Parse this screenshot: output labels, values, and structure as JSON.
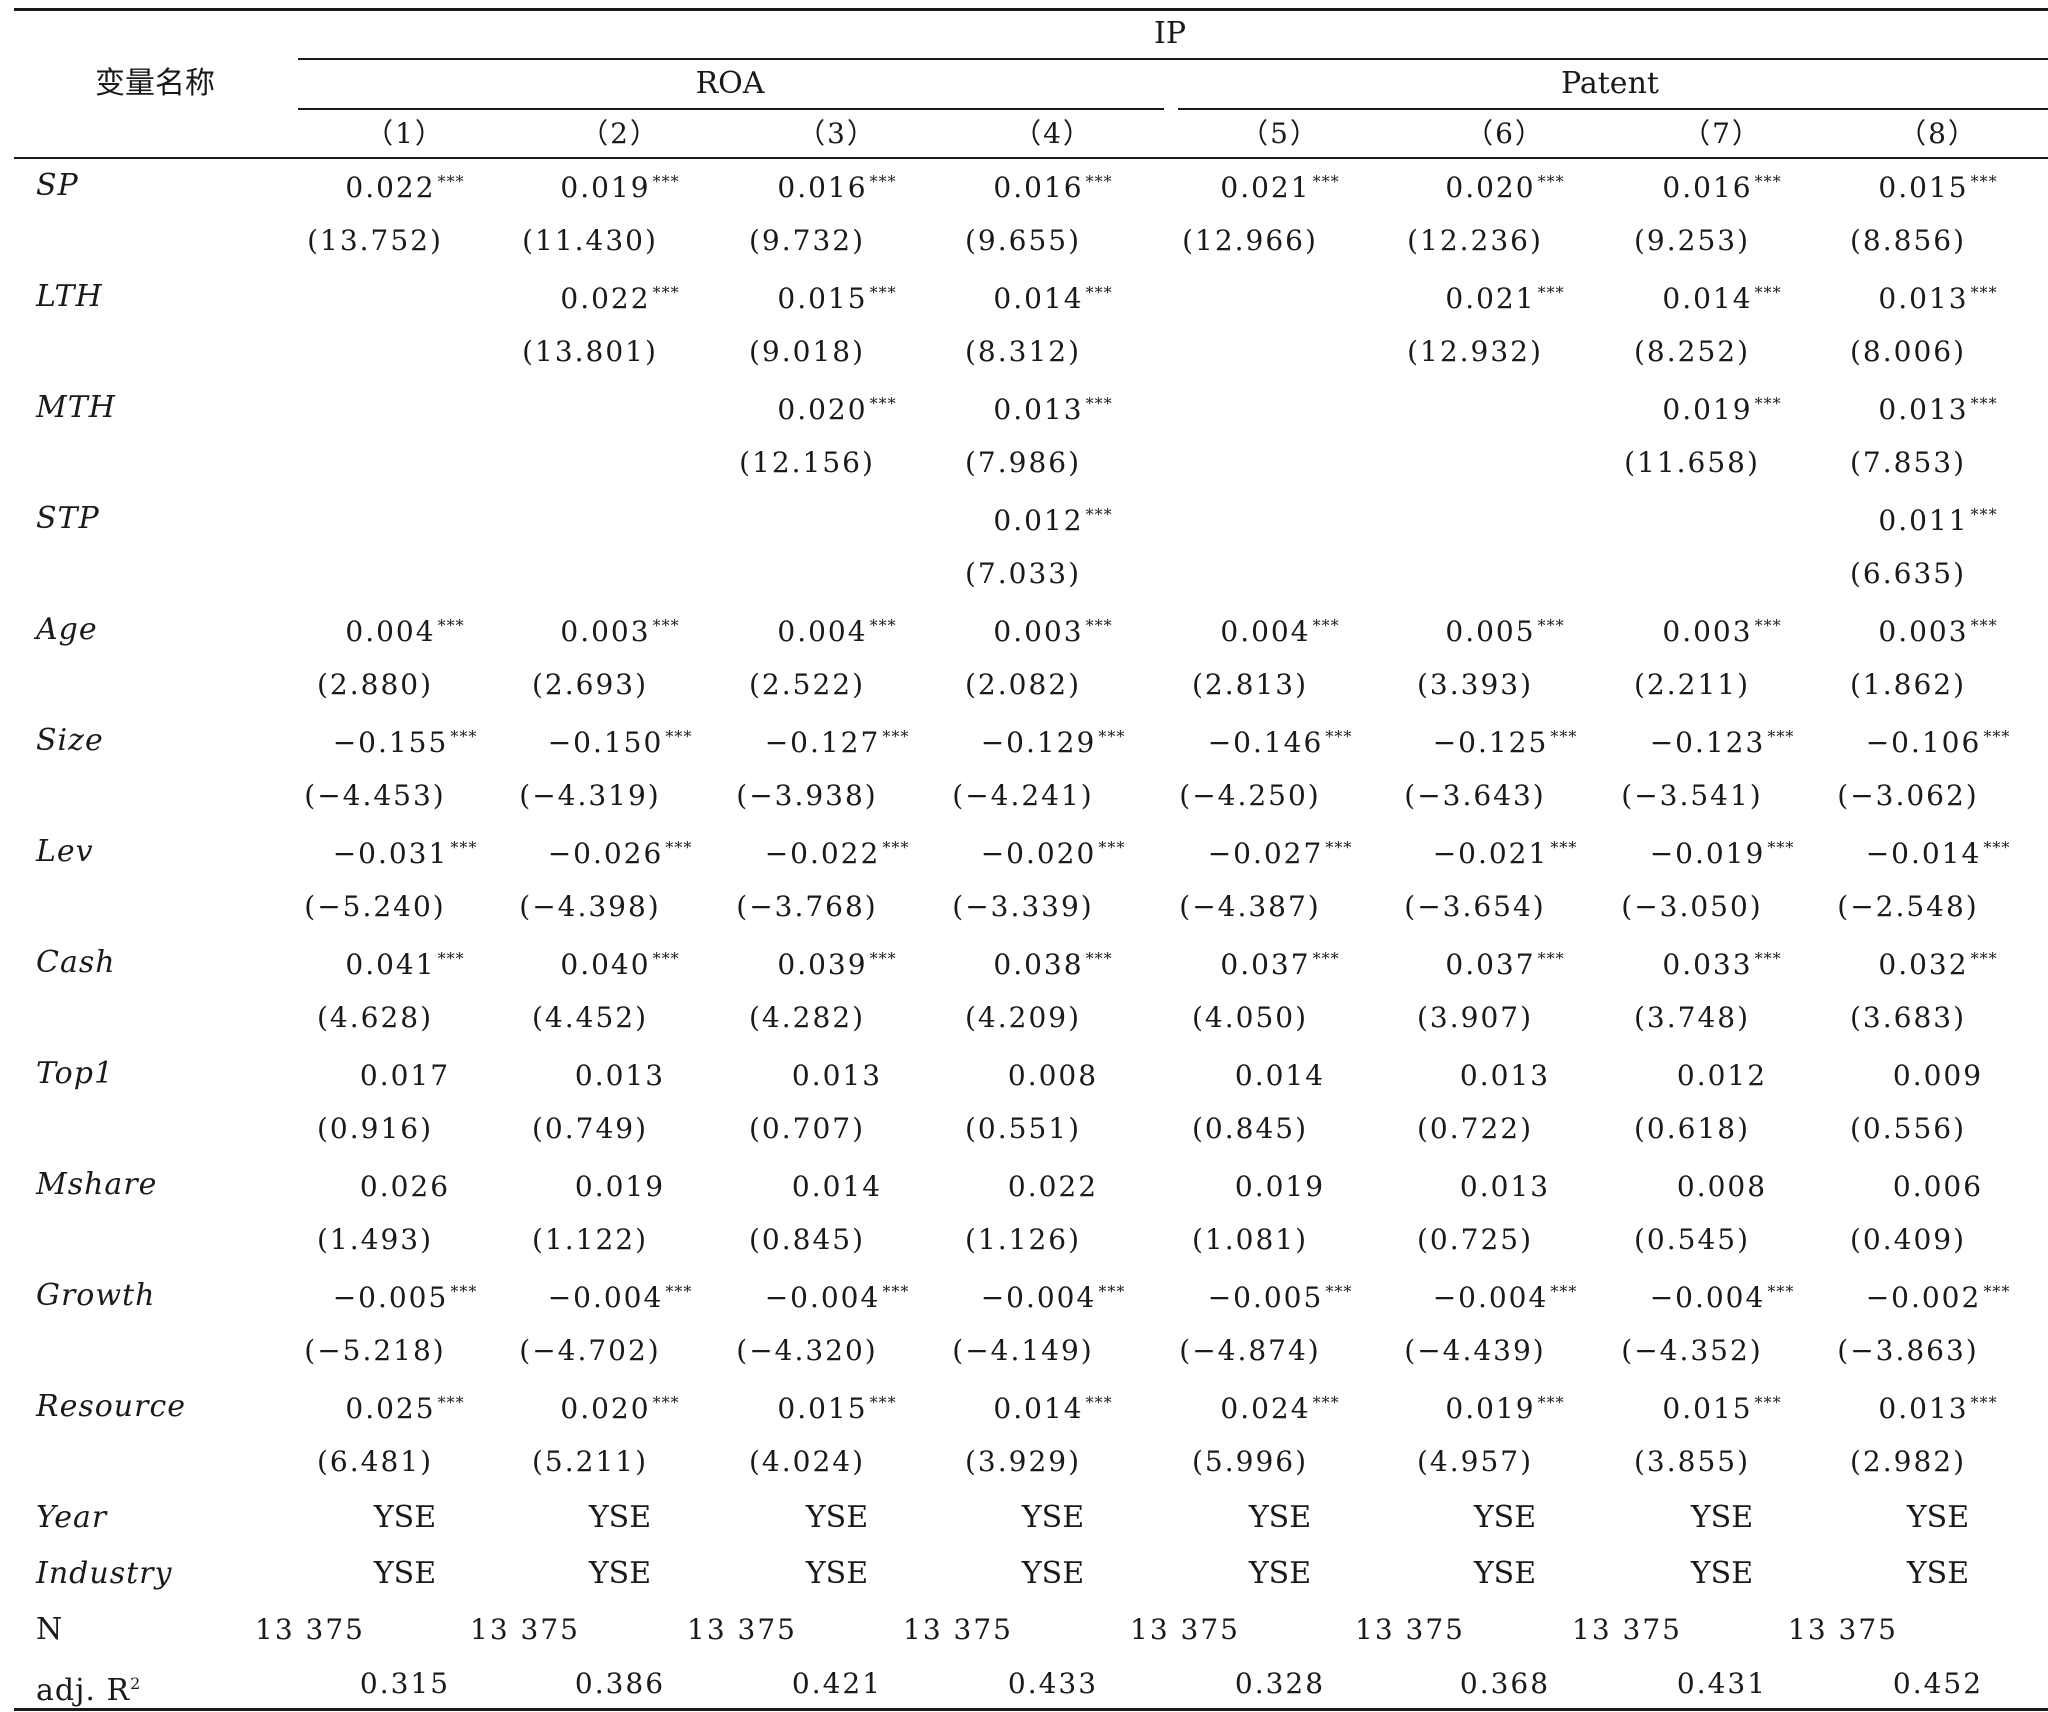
{
  "header": {
    "var_name": "变量名称",
    "ip": "IP",
    "roa": "ROA",
    "patent": "Patent",
    "cols": [
      "（1）",
      "（2）",
      "（3）",
      "（4）",
      "（5）",
      "（6）",
      "（7）",
      "（8）"
    ]
  },
  "rows": [
    {
      "name": "SP",
      "italic": true,
      "coef": [
        "0.022",
        "0.019",
        "0.016",
        "0.016",
        "0.021",
        "0.020",
        "0.016",
        "0.015"
      ],
      "stars": [
        "***",
        "***",
        "***",
        "***",
        "***",
        "***",
        "***",
        "***"
      ],
      "t": [
        "(13.752)",
        "(11.430)",
        "(9.732)",
        "(9.655)",
        "(12.966)",
        "(12.236)",
        "(9.253)",
        "(8.856)"
      ]
    },
    {
      "name": "LTH",
      "italic": true,
      "coef": [
        "",
        "0.022",
        "0.015",
        "0.014",
        "",
        "0.021",
        "0.014",
        "0.013"
      ],
      "stars": [
        "",
        "***",
        "***",
        "***",
        "",
        "***",
        "***",
        "***"
      ],
      "t": [
        "",
        "(13.801)",
        "(9.018)",
        "(8.312)",
        "",
        "(12.932)",
        "(8.252)",
        "(8.006)"
      ]
    },
    {
      "name": "MTH",
      "italic": true,
      "coef": [
        "",
        "",
        "0.020",
        "0.013",
        "",
        "",
        "0.019",
        "0.013"
      ],
      "stars": [
        "",
        "",
        "***",
        "***",
        "",
        "",
        "***",
        "***"
      ],
      "t": [
        "",
        "",
        "(12.156)",
        "(7.986)",
        "",
        "",
        "(11.658)",
        "(7.853)"
      ]
    },
    {
      "name": "STP",
      "italic": true,
      "coef": [
        "",
        "",
        "",
        "0.012",
        "",
        "",
        "",
        "0.011"
      ],
      "stars": [
        "",
        "",
        "",
        "***",
        "",
        "",
        "",
        "***"
      ],
      "t": [
        "",
        "",
        "",
        "(7.033)",
        "",
        "",
        "",
        "(6.635)"
      ]
    },
    {
      "name": "Age",
      "italic": true,
      "coef": [
        "0.004",
        "0.003",
        "0.004",
        "0.003",
        "0.004",
        "0.005",
        "0.003",
        "0.003"
      ],
      "stars": [
        "***",
        "***",
        "***",
        "***",
        "***",
        "***",
        "***",
        "***"
      ],
      "t": [
        "(2.880)",
        "(2.693)",
        "(2.522)",
        "(2.082)",
        "(2.813)",
        "(3.393)",
        "(2.211)",
        "(1.862)"
      ]
    },
    {
      "name": "Size",
      "italic": true,
      "coef": [
        "−0.155",
        "−0.150",
        "−0.127",
        "−0.129",
        "−0.146",
        "−0.125",
        "−0.123",
        "−0.106"
      ],
      "stars": [
        "***",
        "***",
        "***",
        "***",
        "***",
        "***",
        "***",
        "***"
      ],
      "t": [
        "(−4.453)",
        "(−4.319)",
        "(−3.938)",
        "(−4.241)",
        "(−4.250)",
        "(−3.643)",
        "(−3.541)",
        "(−3.062)"
      ]
    },
    {
      "name": "Lev",
      "italic": true,
      "coef": [
        "−0.031",
        "−0.026",
        "−0.022",
        "−0.020",
        "−0.027",
        "−0.021",
        "−0.019",
        "−0.014"
      ],
      "stars": [
        "***",
        "***",
        "***",
        "***",
        "***",
        "***",
        "***",
        "***"
      ],
      "t": [
        "(−5.240)",
        "(−4.398)",
        "(−3.768)",
        "(−3.339)",
        "(−4.387)",
        "(−3.654)",
        "(−3.050)",
        "(−2.548)"
      ]
    },
    {
      "name": "Cash",
      "italic": true,
      "coef": [
        "0.041",
        "0.040",
        "0.039",
        "0.038",
        "0.037",
        "0.037",
        "0.033",
        "0.032"
      ],
      "stars": [
        "***",
        "***",
        "***",
        "***",
        "***",
        "***",
        "***",
        "***"
      ],
      "t": [
        "(4.628)",
        "(4.452)",
        "(4.282)",
        "(4.209)",
        "(4.050)",
        "(3.907)",
        "(3.748)",
        "(3.683)"
      ]
    },
    {
      "name": "Top1",
      "italic": true,
      "coef": [
        "0.017",
        "0.013",
        "0.013",
        "0.008",
        "0.014",
        "0.013",
        "0.012",
        "0.009"
      ],
      "stars": [
        "",
        "",
        "",
        "",
        "",
        "",
        "",
        ""
      ],
      "t": [
        "(0.916)",
        "(0.749)",
        "(0.707)",
        "(0.551)",
        "(0.845)",
        "(0.722)",
        "(0.618)",
        "(0.556)"
      ]
    },
    {
      "name": "Mshare",
      "italic": true,
      "coef": [
        "0.026",
        "0.019",
        "0.014",
        "0.022",
        "0.019",
        "0.013",
        "0.008",
        "0.006"
      ],
      "stars": [
        "",
        "",
        "",
        "",
        "",
        "",
        "",
        ""
      ],
      "t": [
        "(1.493)",
        "(1.122)",
        "(0.845)",
        "(1.126)",
        "(1.081)",
        "(0.725)",
        "(0.545)",
        "(0.409)"
      ]
    },
    {
      "name": "Growth",
      "italic": true,
      "coef": [
        "−0.005",
        "−0.004",
        "−0.004",
        "−0.004",
        "−0.005",
        "−0.004",
        "−0.004",
        "−0.002"
      ],
      "stars": [
        "***",
        "***",
        "***",
        "***",
        "***",
        "***",
        "***",
        "***"
      ],
      "t": [
        "(−5.218)",
        "(−4.702)",
        "(−4.320)",
        "(−4.149)",
        "(−4.874)",
        "(−4.439)",
        "(−4.352)",
        "(−3.863)"
      ]
    },
    {
      "name": "Resource",
      "italic": true,
      "coef": [
        "0.025",
        "0.020",
        "0.015",
        "0.014",
        "0.024",
        "0.019",
        "0.015",
        "0.013"
      ],
      "stars": [
        "***",
        "***",
        "***",
        "***",
        "***",
        "***",
        "***",
        "***"
      ],
      "t": [
        "(6.481)",
        "(5.211)",
        "(4.024)",
        "(3.929)",
        "(5.996)",
        "(4.957)",
        "(3.855)",
        "(2.982)"
      ]
    }
  ],
  "fixed": [
    {
      "name": "Year",
      "values": [
        "YSE",
        "YSE",
        "YSE",
        "YSE",
        "YSE",
        "YSE",
        "YSE",
        "YSE"
      ]
    },
    {
      "name": "Industry",
      "values": [
        "YSE",
        "YSE",
        "YSE",
        "YSE",
        "YSE",
        "YSE",
        "YSE",
        "YSE"
      ]
    }
  ],
  "n_row": {
    "name": "N",
    "values": [
      "13 375",
      "13 375",
      "13 375",
      "13 375",
      "13 375",
      "13 375",
      "13 375",
      "13 375"
    ]
  },
  "r2_row": {
    "name": "adj. R",
    "sup": "2",
    "values": [
      "0.315",
      "0.386",
      "0.421",
      "0.433",
      "0.328",
      "0.368",
      "0.431",
      "0.452"
    ]
  }
}
